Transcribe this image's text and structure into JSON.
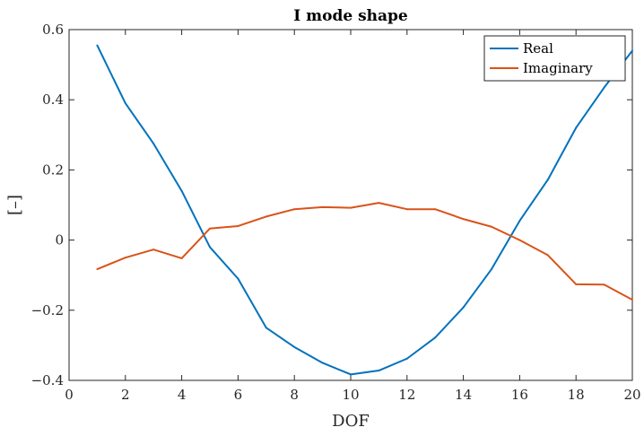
{
  "chart_data": {
    "type": "line",
    "title": "I mode shape",
    "xlabel": "DOF",
    "ylabel": "[–]",
    "xlim": [
      0,
      20
    ],
    "ylim": [
      -0.4,
      0.6
    ],
    "xticks": [
      0,
      2,
      4,
      6,
      8,
      10,
      12,
      14,
      16,
      18,
      20
    ],
    "yticks": [
      -0.4,
      -0.2,
      0,
      0.2,
      0.4,
      0.6
    ],
    "xtick_labels": [
      "0",
      "2",
      "4",
      "6",
      "8",
      "10",
      "12",
      "14",
      "16",
      "18",
      "20"
    ],
    "ytick_labels": [
      "−0.4",
      "−0.2",
      "0",
      "0.2",
      "0.4",
      "0.6"
    ],
    "grid": false,
    "legend_position": "top-right",
    "x": [
      1,
      2,
      3,
      4,
      5,
      6,
      7,
      8,
      9,
      10,
      11,
      12,
      13,
      14,
      15,
      16,
      17,
      18,
      19,
      20
    ],
    "series": [
      {
        "name": "Real",
        "color": "#0072BD",
        "values": [
          0.555,
          0.39,
          0.275,
          0.14,
          -0.02,
          -0.11,
          -0.25,
          -0.305,
          -0.35,
          -0.383,
          -0.372,
          -0.338,
          -0.278,
          -0.192,
          -0.083,
          0.055,
          0.172,
          0.32,
          0.435,
          0.54
        ]
      },
      {
        "name": "Imaginary",
        "color": "#D95319",
        "values": [
          -0.083,
          -0.05,
          -0.027,
          -0.052,
          0.033,
          0.04,
          0.067,
          0.088,
          0.094,
          0.092,
          0.106,
          0.088,
          0.088,
          0.06,
          0.038,
          0.0,
          -0.043,
          -0.126,
          -0.127,
          -0.17
        ]
      }
    ]
  }
}
